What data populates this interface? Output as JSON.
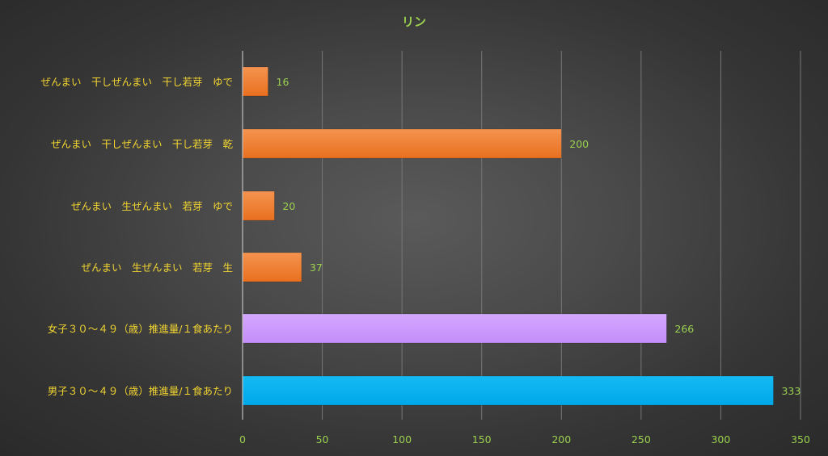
{
  "chart_data": {
    "type": "bar",
    "orientation": "horizontal",
    "title": "リン",
    "categories": [
      "ぜんまい　干しぜんまい　干し若芽　ゆで",
      "ぜんまい　干しぜんまい　干し若芽　乾",
      "ぜんまい　生ぜんまい　若芽　ゆで",
      "ぜんまい　生ぜんまい　若芽　生",
      "女子３０～４９（歳）推進量/１食あたり",
      "男子３０～４９（歳）推進量/１食あたり"
    ],
    "values": [
      16,
      200,
      20,
      37,
      266,
      333
    ],
    "bar_colors": [
      "#ee7d2e",
      "#ee7d2e",
      "#ee7d2e",
      "#ee7d2e",
      "#cc99ff",
      "#00b0ef"
    ],
    "xlim": [
      0,
      350
    ],
    "xticks": [
      0,
      50,
      100,
      150,
      200,
      250,
      300,
      350
    ],
    "xlabel": "",
    "ylabel": "",
    "grid": true,
    "legend": "none"
  },
  "colors": {
    "title": "#9bd14f",
    "category_label": "#f2d531",
    "tick_label": "#9bd14f",
    "data_label": "#9bd14f"
  }
}
